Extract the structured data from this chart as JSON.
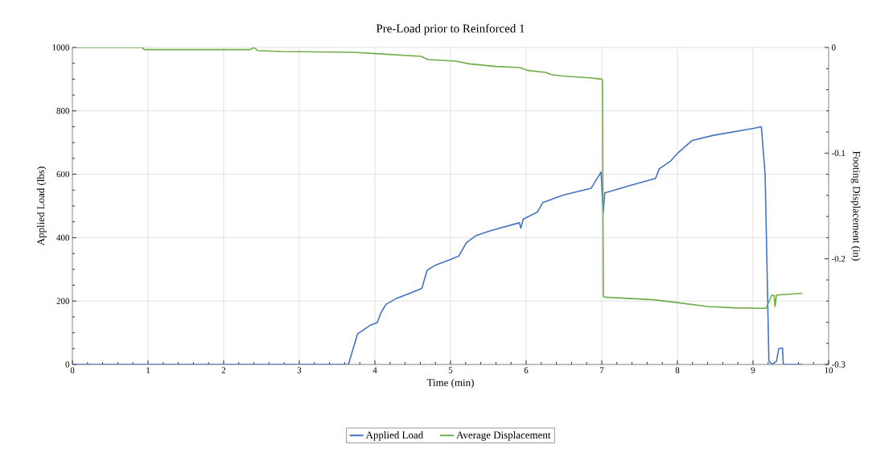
{
  "chart_data": {
    "type": "line",
    "title": "Pre-Load prior to Reinforced 1",
    "xlabel": "Time (min)",
    "ylabel": "Applied Load (lbs)",
    "y2label": "Footing Displacement (in)",
    "xlim": [
      0,
      10
    ],
    "xticks": [
      0,
      1,
      2,
      3,
      4,
      5,
      6,
      7,
      8,
      9,
      10
    ],
    "ylim": [
      0,
      1000
    ],
    "yticks": [
      0,
      200,
      400,
      600,
      800,
      1000
    ],
    "y2lim": [
      -0.3,
      0
    ],
    "y2ticks": [
      -0.3,
      -0.2,
      -0.1,
      0
    ],
    "grid": true,
    "legend": "bottom",
    "marker": "none",
    "line_style": "solid",
    "series": [
      {
        "name": "Applied Load",
        "color": "#4472c4",
        "x": [
          0,
          3.65,
          3.77,
          3.94,
          4.03,
          4.09,
          4.15,
          4.29,
          4.47,
          4.62,
          4.69,
          4.79,
          5.0,
          5.11,
          5.21,
          5.34,
          5.53,
          5.91,
          5.93,
          5.96,
          6.15,
          6.22,
          6.49,
          6.86,
          6.99,
          7.02,
          7.04,
          7.34,
          7.71,
          7.76,
          7.91,
          8.01,
          8.19,
          8.48,
          9.01,
          9.11,
          9.16,
          9.21,
          9.25,
          9.31,
          9.34,
          9.39,
          9.4,
          9.65
        ],
        "values": [
          0,
          0,
          96,
          124,
          132,
          168,
          190,
          209,
          225,
          240,
          297,
          312,
          331,
          342,
          384,
          407,
          422,
          447,
          430,
          458,
          481,
          511,
          534,
          556,
          607,
          481,
          541,
          562,
          587,
          617,
          642,
          668,
          706,
          723,
          745,
          750,
          600,
          12,
          0,
          10,
          50,
          52,
          0,
          0
        ]
      },
      {
        "name": "Average Displacement",
        "color": "#70ad47",
        "axis": "y2",
        "x": [
          0,
          0.92,
          0.95,
          2.35,
          2.4,
          2.45,
          2.77,
          3.72,
          4.01,
          4.61,
          4.7,
          5.07,
          5.25,
          5.6,
          5.92,
          6.01,
          6.26,
          6.33,
          6.49,
          6.84,
          7.0,
          7.01,
          7.02,
          7.04,
          7.69,
          7.98,
          8.4,
          8.76,
          9.17,
          9.25,
          9.28,
          9.29,
          9.31,
          9.65
        ],
        "values": [
          0,
          0,
          -0.002,
          -0.002,
          0,
          -0.003,
          -0.0038,
          -0.0046,
          -0.0058,
          -0.0084,
          -0.0114,
          -0.013,
          -0.0155,
          -0.018,
          -0.019,
          -0.0216,
          -0.0236,
          -0.0257,
          -0.027,
          -0.0287,
          -0.03,
          -0.0318,
          -0.2355,
          -0.2363,
          -0.2388,
          -0.2413,
          -0.2452,
          -0.2464,
          -0.2469,
          -0.2343,
          -0.235,
          -0.2452,
          -0.2343,
          -0.2326
        ]
      }
    ]
  }
}
